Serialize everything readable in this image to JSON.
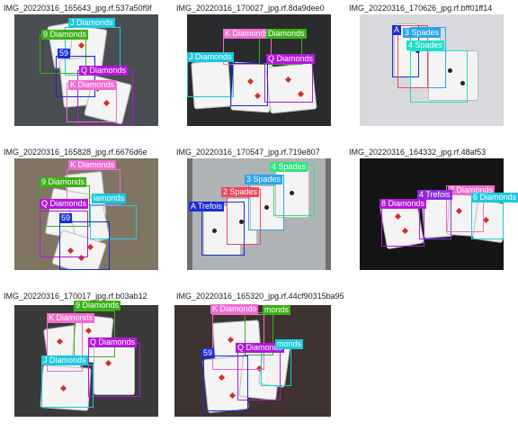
{
  "tiles": [
    {
      "filename": "IMG_20220316_165643_jpg.rf.537a50f9f",
      "labels": [
        "J Diamonds",
        "9 Diamonds",
        "59",
        "Q Diamonds",
        "K Diamonds"
      ],
      "colors": [
        "#1ec9e0",
        "#3cb017",
        "#1a2dd8",
        "#b417d9",
        "#f06cd0"
      ]
    },
    {
      "filename": "IMG_20220316_170027_jpg.rf.8da9dee0",
      "labels": [
        "K Diamonds",
        "Diamonds",
        "J Diamonds",
        "Q Diamonds"
      ],
      "colors": [
        "#f06cd0",
        "#3cb017",
        "#1ec9e0",
        "#b417d9"
      ]
    },
    {
      "filename": "IMG_20220316_170626_jpg.rf.bff01ff14",
      "labels": [
        "A",
        "3 Spades",
        "4 Spades"
      ],
      "colors": [
        "#1a2dd8",
        "#2aa4f0",
        "#1ce0c8"
      ]
    },
    {
      "filename": "IMG_20220316_165828_jpg.rf.6676d6e",
      "labels": [
        "K Diamonds",
        "9 Diamonds",
        "iamonds",
        "Q Diamonds",
        "59"
      ],
      "colors": [
        "#f06cd0",
        "#3cb017",
        "#1ec9e0",
        "#b417d9",
        "#1a2dd8"
      ]
    },
    {
      "filename": "IMG_20220316_170547_jpg.rf.719e807",
      "labels": [
        "4 Spades",
        "3 Spades",
        "2 Spades",
        "A Trefois"
      ],
      "colors": [
        "#2ee67a",
        "#2aa4f0",
        "#f0465a",
        "#1a2dd8"
      ]
    },
    {
      "filename": "IMG_20220316_164332_jpg.rf.48af53",
      "labels": [
        "7 Diamonds",
        "4 Trefois",
        "8 Diamonds",
        "6 Diamonds"
      ],
      "colors": [
        "#f06cd0",
        "#8a2be2",
        "#b417d9",
        "#1ec9e0"
      ]
    },
    {
      "filename": "IMG_20220316_170017_jpg.rf.b03ab12",
      "labels": [
        "9 Diamonds",
        "K Diamonds",
        "Q Diamonds",
        "J Diamonds"
      ],
      "colors": [
        "#3cb017",
        "#f06cd0",
        "#b417d9",
        "#1ec9e0"
      ]
    },
    {
      "filename": "IMG_20220316_165320_jpg.rf.44cf90315ba95",
      "labels": [
        "K Diamonds",
        "monds",
        "Q Diamonds",
        "monds",
        "59"
      ],
      "colors": [
        "#f06cd0",
        "#3cb017",
        "#b417d9",
        "#1ec9e0",
        "#1a2dd8"
      ]
    }
  ]
}
